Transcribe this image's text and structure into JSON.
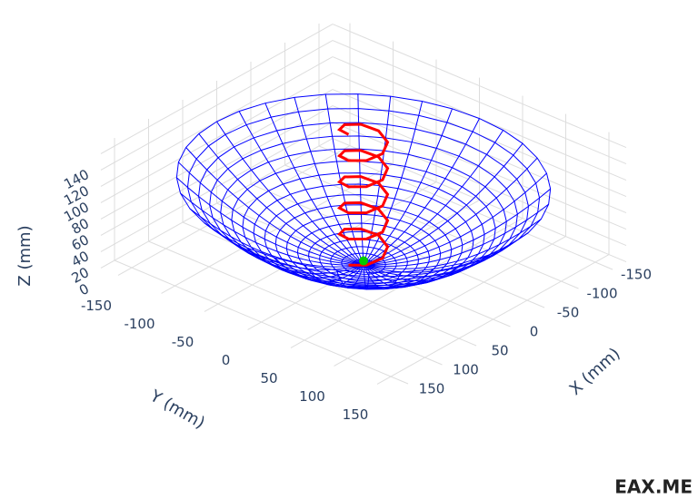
{
  "chart_data": {
    "type": "surface3d",
    "xlabel": "X (mm)",
    "ylabel": "Y (mm)",
    "zlabel": "Z (mm)",
    "xlim": [
      -170,
      170
    ],
    "ylim": [
      -170,
      170
    ],
    "zlim": [
      0,
      150
    ],
    "xticks": [
      -150,
      -100,
      -50,
      0,
      50,
      100,
      150
    ],
    "yticks": [
      -150,
      -100,
      -50,
      0,
      50,
      100,
      150
    ],
    "zticks": [
      0,
      20,
      40,
      60,
      80,
      100,
      120,
      140
    ],
    "grid": true,
    "surface": {
      "color": "#0000ff",
      "r": [
        0,
        10,
        20,
        30,
        40,
        50,
        60,
        70,
        80,
        90,
        100,
        110,
        120,
        130,
        140,
        150,
        160,
        170
      ],
      "z": [
        0,
        0.35,
        1.38,
        3.11,
        5.54,
        8.65,
        12.46,
        16.96,
        22.15,
        28.03,
        34.6,
        41.87,
        49.83,
        58.48,
        67.82,
        77.85,
        88.58,
        100
      ],
      "theta": [
        0,
        10,
        20,
        30,
        40,
        50,
        60,
        70,
        80,
        90,
        100,
        110,
        120,
        130,
        140,
        150,
        160,
        170,
        180,
        190,
        200,
        210,
        220,
        230,
        240,
        250,
        260,
        270,
        280,
        290,
        300,
        310,
        320,
        330,
        340,
        350
      ]
    },
    "series": [
      {
        "color": "#ff0000",
        "x": [
          22,
          15.6,
          0,
          -15.6,
          -22,
          -15.6,
          0,
          15.6,
          22,
          15.6,
          0,
          -15.6,
          -22,
          -15.6,
          0,
          15.6,
          22,
          15.6,
          0,
          -15.6,
          -22,
          -15.6,
          0,
          15.6,
          22,
          15.6,
          0,
          -15.6,
          -22,
          -15.6,
          0,
          15.6,
          22,
          15.6,
          0,
          -15.6,
          -22,
          -15.6,
          0,
          15.6,
          22
        ],
        "y": [
          0,
          15.6,
          22,
          15.6,
          0,
          -15.6,
          -22,
          -15.6,
          0,
          15.6,
          22,
          15.6,
          0,
          -15.6,
          -22,
          -15.6,
          0,
          15.6,
          22,
          15.6,
          0,
          -15.6,
          -22,
          -15.6,
          0,
          15.6,
          22,
          15.6,
          0,
          -15.6,
          -22,
          -15.6,
          0,
          15.6,
          22,
          15.6,
          0,
          -15.6,
          -22,
          -15.6,
          0
        ],
        "z": [
          10,
          14,
          18,
          22,
          26,
          30,
          34,
          38,
          42,
          46,
          50,
          54,
          58,
          62,
          66,
          70,
          74,
          78,
          82,
          86,
          90,
          94,
          98,
          102,
          106,
          110,
          114,
          118,
          122,
          126,
          130,
          134,
          138,
          142,
          146,
          150,
          154,
          158,
          162,
          166,
          170
        ]
      },
      {
        "color": "#00cc00",
        "x": [
          0
        ],
        "y": [
          0
        ],
        "z": [
          5
        ]
      }
    ]
  },
  "watermark": "EAX.ME"
}
